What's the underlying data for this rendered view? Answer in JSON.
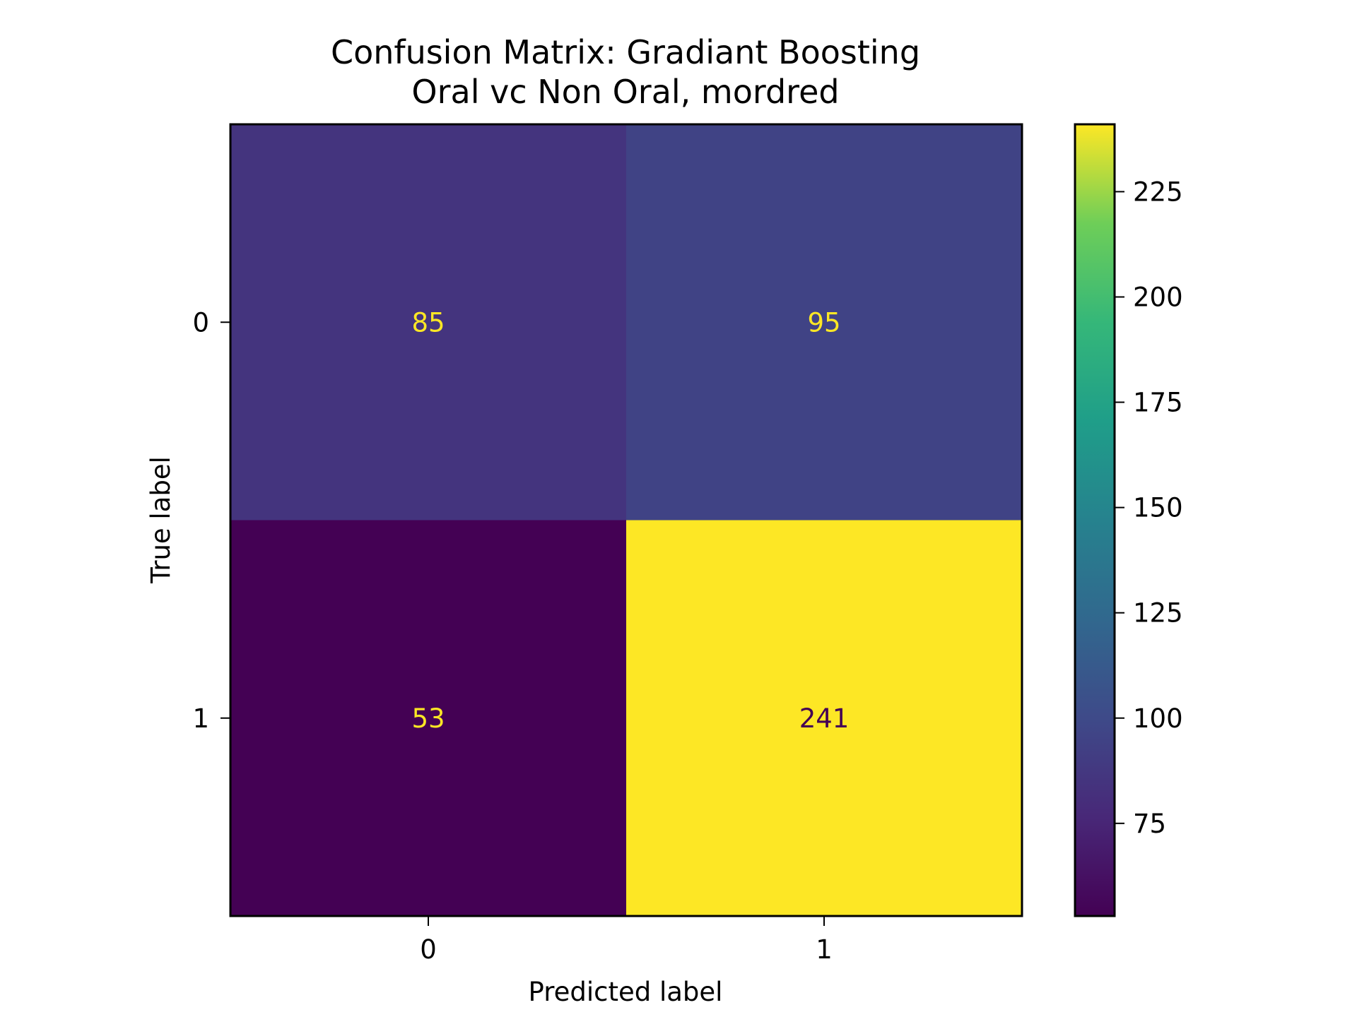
{
  "chart_data": {
    "type": "heatmap",
    "title": "Confusion Matrix: Gradiant Boosting",
    "subtitle": "Oral vc Non Oral, mordred",
    "xlabel": "Predicted label",
    "ylabel": "True label",
    "x_categories": [
      "0",
      "1"
    ],
    "y_categories": [
      "0",
      "1"
    ],
    "values": [
      [
        85,
        95
      ],
      [
        53,
        241
      ]
    ],
    "colormap": "viridis",
    "colorbar": {
      "range": [
        53,
        241
      ],
      "ticks": [
        "75",
        "100",
        "125",
        "150",
        "175",
        "200",
        "225"
      ]
    },
    "grid": false,
    "text_colors": {
      "on_dark": "#fde725",
      "on_light": "#440154"
    }
  }
}
